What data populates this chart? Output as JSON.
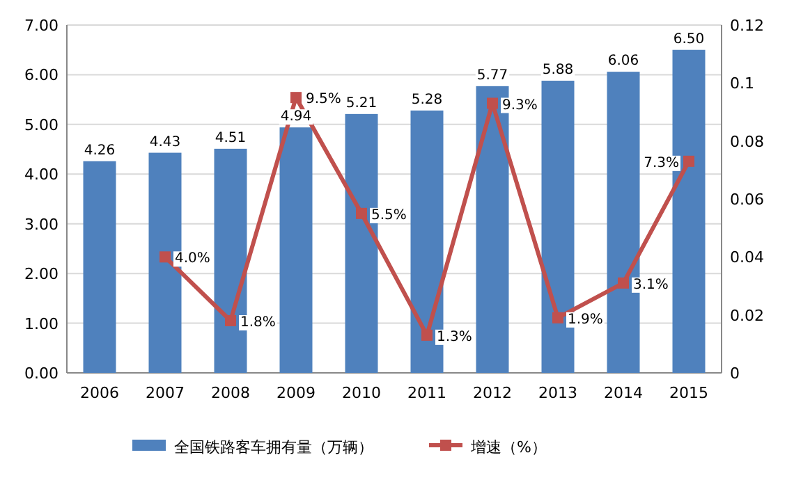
{
  "chart_data": {
    "type": "bar",
    "categories": [
      "2006",
      "2007",
      "2008",
      "2009",
      "2010",
      "2011",
      "2012",
      "2013",
      "2014",
      "2015"
    ],
    "series": [
      {
        "name": "全国铁路客车拥有量（万辆）",
        "color": "#4f81bd",
        "values": [
          4.26,
          4.43,
          4.51,
          4.94,
          5.21,
          5.28,
          5.77,
          5.88,
          6.06,
          6.5
        ],
        "value_labels": [
          "4.26",
          "4.43",
          "4.51",
          "4.94",
          "5.21",
          "5.28",
          "5.77",
          "5.88",
          "6.06",
          "6.50"
        ]
      },
      {
        "name": "增速（%）",
        "type": "line",
        "axis": "y2",
        "color": "#c0504d",
        "marker": "square",
        "values": [
          null,
          0.04,
          0.018,
          0.095,
          0.055,
          0.013,
          0.093,
          0.019,
          0.031,
          0.073
        ],
        "value_labels": [
          null,
          "4.0%",
          "1.8%",
          "9.5%",
          "5.5%",
          "1.3%",
          "9.3%",
          "1.9%",
          "3.1%",
          "7.3%"
        ]
      }
    ],
    "ylim": [
      0,
      7
    ],
    "yticks": [
      {
        "value": 0,
        "label": "0.00"
      },
      {
        "value": 1,
        "label": "1.00"
      },
      {
        "value": 2,
        "label": "2.00"
      },
      {
        "value": 3,
        "label": "3.00"
      },
      {
        "value": 4,
        "label": "4.00"
      },
      {
        "value": 5,
        "label": "5.00"
      },
      {
        "value": 6,
        "label": "6.00"
      },
      {
        "value": 7,
        "label": "7.00"
      }
    ],
    "y2lim": [
      0,
      0.12
    ],
    "y2ticks": [
      0,
      0.02,
      0.04,
      0.06,
      0.08,
      0.1,
      0.12
    ],
    "grid": "y",
    "legend": "bottom"
  }
}
